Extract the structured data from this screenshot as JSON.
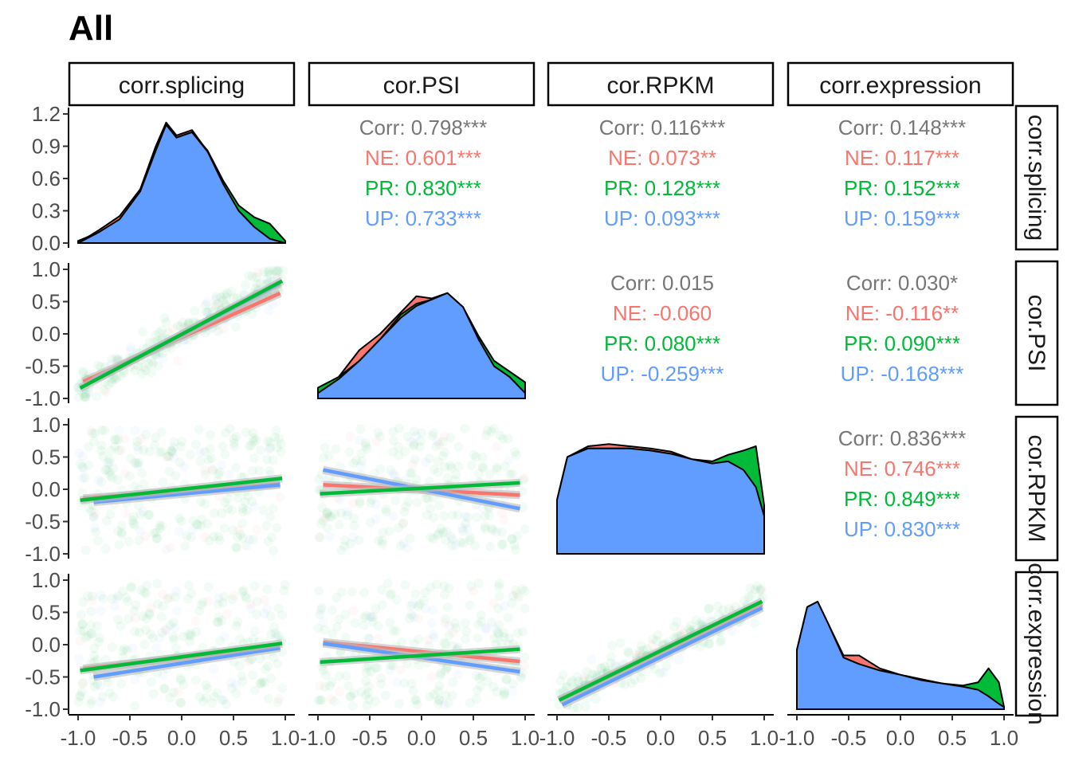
{
  "title": "All",
  "colors": {
    "NE": "#F8766D",
    "PR": "#00BA38",
    "UP": "#619CFF",
    "Corr": "#777777"
  },
  "chart_data": {
    "type": "scatter",
    "title": "All",
    "variables": [
      "corr.splicing",
      "cor.PSI",
      "cor.RPKM",
      "corr.expression"
    ],
    "groups": [
      "NE",
      "PR",
      "UP"
    ],
    "diagonal_ylim": [
      0.0,
      1.2
    ],
    "diagonal_yticks": [
      "0.0",
      "0.3",
      "0.6",
      "0.9",
      "1.2"
    ],
    "xlim": [
      -1.0,
      1.0
    ],
    "ylim": [
      -1.0,
      1.0
    ],
    "xticks": [
      "-1.0",
      "-0.5",
      "0.0",
      "0.5",
      "1.0"
    ],
    "yticks": [
      "-1.0",
      "-0.5",
      "0.0",
      "0.5",
      "1.0"
    ],
    "density_shapes": [
      {
        "variable": "corr.splicing",
        "x": [
          -1.0,
          -0.8,
          -0.6,
          -0.4,
          -0.25,
          -0.15,
          -0.05,
          0.1,
          0.25,
          0.4,
          0.55,
          0.7,
          0.85,
          1.0
        ],
        "NE": [
          0.0,
          0.12,
          0.25,
          0.5,
          0.9,
          1.12,
          1.0,
          1.05,
          0.85,
          0.55,
          0.3,
          0.18,
          0.1,
          0.0
        ],
        "PR": [
          0.02,
          0.1,
          0.22,
          0.48,
          0.86,
          1.05,
          0.98,
          1.03,
          0.86,
          0.58,
          0.35,
          0.24,
          0.18,
          0.02
        ],
        "UP": [
          0.0,
          0.1,
          0.22,
          0.48,
          0.86,
          1.1,
          0.98,
          1.03,
          0.85,
          0.55,
          0.3,
          0.15,
          0.04,
          0.0
        ]
      },
      {
        "variable": "cor.PSI",
        "x": [
          -1.0,
          -0.8,
          -0.6,
          -0.4,
          -0.2,
          -0.05,
          0.1,
          0.25,
          0.4,
          0.55,
          0.7,
          0.85,
          1.0
        ],
        "NE": [
          0.05,
          0.2,
          0.45,
          0.6,
          0.8,
          0.95,
          0.93,
          0.98,
          0.85,
          0.55,
          0.3,
          0.2,
          0.05
        ],
        "PR": [
          0.1,
          0.2,
          0.35,
          0.55,
          0.78,
          0.88,
          0.92,
          0.97,
          0.85,
          0.58,
          0.35,
          0.25,
          0.15
        ],
        "UP": [
          0.05,
          0.18,
          0.35,
          0.55,
          0.75,
          0.86,
          0.92,
          0.98,
          0.85,
          0.55,
          0.3,
          0.2,
          0.05
        ]
      },
      {
        "variable": "cor.RPKM",
        "x": [
          -1.0,
          -0.9,
          -0.7,
          -0.5,
          -0.3,
          -0.1,
          0.1,
          0.3,
          0.5,
          0.65,
          0.8,
          0.92,
          1.0
        ],
        "NE": [
          0.5,
          0.9,
          1.0,
          1.02,
          1.0,
          0.98,
          0.95,
          0.88,
          0.84,
          0.86,
          0.78,
          0.62,
          0.35
        ],
        "PR": [
          0.5,
          0.9,
          0.98,
          0.98,
          0.98,
          0.96,
          0.93,
          0.88,
          0.86,
          0.92,
          0.96,
          1.0,
          0.45
        ],
        "UP": [
          0.5,
          0.9,
          0.98,
          0.98,
          0.98,
          0.96,
          0.93,
          0.88,
          0.84,
          0.86,
          0.78,
          0.62,
          0.35
        ]
      },
      {
        "variable": "corr.expression",
        "x": [
          -1.0,
          -0.9,
          -0.8,
          -0.7,
          -0.55,
          -0.4,
          -0.2,
          0.0,
          0.2,
          0.4,
          0.6,
          0.75,
          0.85,
          0.95,
          1.0
        ],
        "NE": [
          0.55,
          0.95,
          1.0,
          0.8,
          0.5,
          0.5,
          0.38,
          0.32,
          0.28,
          0.24,
          0.2,
          0.18,
          0.12,
          0.05,
          0.02
        ],
        "PR": [
          0.55,
          0.95,
          1.0,
          0.8,
          0.48,
          0.42,
          0.36,
          0.32,
          0.27,
          0.24,
          0.22,
          0.25,
          0.38,
          0.25,
          0.02
        ],
        "UP": [
          0.55,
          0.95,
          1.0,
          0.8,
          0.48,
          0.42,
          0.36,
          0.32,
          0.27,
          0.24,
          0.21,
          0.18,
          0.12,
          0.05,
          0.02
        ]
      }
    ],
    "fit_lines": [
      {
        "row": "cor.PSI",
        "col": "corr.splicing",
        "NE": [
          [
            -0.95,
            -0.74
          ],
          [
            0.95,
            0.63
          ]
        ],
        "PR": [
          [
            -0.98,
            -0.84
          ],
          [
            0.97,
            0.82
          ]
        ],
        "UP": [
          [
            -0.85,
            -0.72
          ],
          [
            0.95,
            0.78
          ]
        ]
      },
      {
        "row": "cor.RPKM",
        "col": "corr.splicing",
        "NE": [
          [
            -0.95,
            -0.14
          ],
          [
            0.95,
            0.08
          ]
        ],
        "PR": [
          [
            -0.98,
            -0.17
          ],
          [
            0.97,
            0.17
          ]
        ],
        "UP": [
          [
            -0.85,
            -0.2
          ],
          [
            0.95,
            0.07
          ]
        ]
      },
      {
        "row": "cor.RPKM",
        "col": "cor.PSI",
        "NE": [
          [
            -0.95,
            0.07
          ],
          [
            0.95,
            -0.09
          ]
        ],
        "PR": [
          [
            -0.98,
            -0.07
          ],
          [
            0.95,
            0.1
          ]
        ],
        "UP": [
          [
            -0.95,
            0.3
          ],
          [
            0.95,
            -0.3
          ]
        ]
      },
      {
        "row": "corr.expression",
        "col": "corr.splicing",
        "NE": [
          [
            -0.95,
            -0.37
          ],
          [
            0.95,
            -0.03
          ]
        ],
        "PR": [
          [
            -0.98,
            -0.4
          ],
          [
            0.97,
            0.02
          ]
        ],
        "UP": [
          [
            -0.85,
            -0.5
          ],
          [
            0.95,
            -0.05
          ]
        ]
      },
      {
        "row": "corr.expression",
        "col": "cor.PSI",
        "NE": [
          [
            -0.95,
            0.04
          ],
          [
            0.95,
            -0.26
          ]
        ],
        "PR": [
          [
            -0.98,
            -0.27
          ],
          [
            0.95,
            -0.07
          ]
        ],
        "UP": [
          [
            -0.95,
            0.02
          ],
          [
            0.95,
            -0.42
          ]
        ]
      },
      {
        "row": "corr.expression",
        "col": "cor.RPKM",
        "NE": [
          [
            -0.98,
            -0.86
          ],
          [
            0.98,
            0.62
          ]
        ],
        "PR": [
          [
            -0.98,
            -0.86
          ],
          [
            0.98,
            0.67
          ]
        ],
        "UP": [
          [
            -0.95,
            -0.93
          ],
          [
            0.98,
            0.57
          ]
        ]
      }
    ],
    "correlations": [
      {
        "row": "corr.splicing",
        "col": "cor.PSI",
        "lines": [
          {
            "group": "Corr",
            "text": "Corr: 0.798***"
          },
          {
            "group": "NE",
            "text": "NE: 0.601***"
          },
          {
            "group": "PR",
            "text": "PR: 0.830***"
          },
          {
            "group": "UP",
            "text": "UP: 0.733***"
          }
        ]
      },
      {
        "row": "corr.splicing",
        "col": "cor.RPKM",
        "lines": [
          {
            "group": "Corr",
            "text": "Corr: 0.116***"
          },
          {
            "group": "NE",
            "text": "NE: 0.073**"
          },
          {
            "group": "PR",
            "text": "PR: 0.128***"
          },
          {
            "group": "UP",
            "text": "UP: 0.093***"
          }
        ]
      },
      {
        "row": "corr.splicing",
        "col": "corr.expression",
        "lines": [
          {
            "group": "Corr",
            "text": "Corr: 0.148***"
          },
          {
            "group": "NE",
            "text": "NE: 0.117***"
          },
          {
            "group": "PR",
            "text": "PR: 0.152***"
          },
          {
            "group": "UP",
            "text": "UP: 0.159***"
          }
        ]
      },
      {
        "row": "cor.PSI",
        "col": "cor.RPKM",
        "lines": [
          {
            "group": "Corr",
            "text": "Corr: 0.015"
          },
          {
            "group": "NE",
            "text": "NE: -0.060"
          },
          {
            "group": "PR",
            "text": "PR: 0.080***"
          },
          {
            "group": "UP",
            "text": "UP: -0.259***"
          }
        ]
      },
      {
        "row": "cor.PSI",
        "col": "corr.expression",
        "lines": [
          {
            "group": "Corr",
            "text": "Corr: 0.030*"
          },
          {
            "group": "NE",
            "text": "NE: -0.116**"
          },
          {
            "group": "PR",
            "text": "PR: 0.090***"
          },
          {
            "group": "UP",
            "text": "UP: -0.168***"
          }
        ]
      },
      {
        "row": "cor.RPKM",
        "col": "corr.expression",
        "lines": [
          {
            "group": "Corr",
            "text": "Corr: 0.836***"
          },
          {
            "group": "NE",
            "text": "NE: 0.746***"
          },
          {
            "group": "PR",
            "text": "PR: 0.849***"
          },
          {
            "group": "UP",
            "text": "UP: 0.830***"
          }
        ]
      }
    ]
  }
}
